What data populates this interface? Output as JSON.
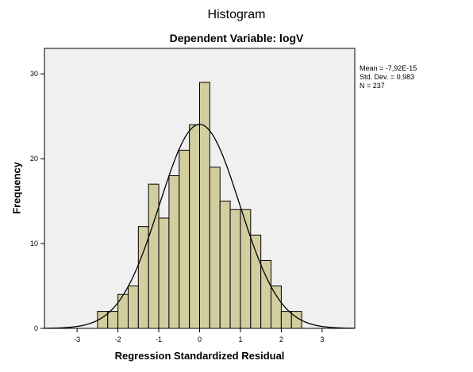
{
  "chart_data": {
    "type": "bar",
    "title": "Histogram",
    "subtitle": "Dependent Variable: logV",
    "xlabel": "Regression Standardized Residual",
    "ylabel": "Frequency",
    "xlim": [
      -3.8,
      3.8
    ],
    "ylim": [
      0,
      33
    ],
    "x_ticks": [
      "-3",
      "-2",
      "-1",
      "0",
      "1",
      "2",
      "3"
    ],
    "y_ticks": [
      "0",
      "10",
      "20",
      "30"
    ],
    "bin_width": 0.25,
    "bins": [
      {
        "start": -2.5,
        "end": -2.25,
        "value": 2
      },
      {
        "start": -2.25,
        "end": -2.0,
        "value": 2
      },
      {
        "start": -2.0,
        "end": -1.75,
        "value": 4
      },
      {
        "start": -1.75,
        "end": -1.5,
        "value": 5
      },
      {
        "start": -1.5,
        "end": -1.25,
        "value": 12
      },
      {
        "start": -1.25,
        "end": -1.0,
        "value": 17
      },
      {
        "start": -1.0,
        "end": -0.75,
        "value": 13
      },
      {
        "start": -0.75,
        "end": -0.5,
        "value": 18
      },
      {
        "start": -0.5,
        "end": -0.25,
        "value": 21
      },
      {
        "start": -0.25,
        "end": 0.0,
        "value": 24
      },
      {
        "start": 0.0,
        "end": 0.25,
        "value": 29
      },
      {
        "start": 0.25,
        "end": 0.5,
        "value": 19
      },
      {
        "start": 0.5,
        "end": 0.75,
        "value": 15
      },
      {
        "start": 0.75,
        "end": 1.0,
        "value": 14
      },
      {
        "start": 1.0,
        "end": 1.25,
        "value": 14
      },
      {
        "start": 1.25,
        "end": 1.5,
        "value": 11
      },
      {
        "start": 1.5,
        "end": 1.75,
        "value": 8
      },
      {
        "start": 1.75,
        "end": 2.0,
        "value": 5
      },
      {
        "start": 2.0,
        "end": 2.25,
        "value": 2
      },
      {
        "start": 2.25,
        "end": 2.5,
        "value": 2
      }
    ],
    "normal_curve": {
      "mean": 0,
      "std_dev": 0.983,
      "n": 237
    },
    "stats_lines": [
      "Mean = -7,92E-15",
      "Std. Dev. = 0,983",
      "N = 237"
    ],
    "colors": {
      "plot_background": "#f0f0f0",
      "bar_fill": "#d3cea0",
      "bar_stroke": "#000000",
      "curve": "#000000",
      "axis": "#000000",
      "page_background": "#ffffff"
    },
    "grid": false,
    "legend": "top-right-outside"
  }
}
